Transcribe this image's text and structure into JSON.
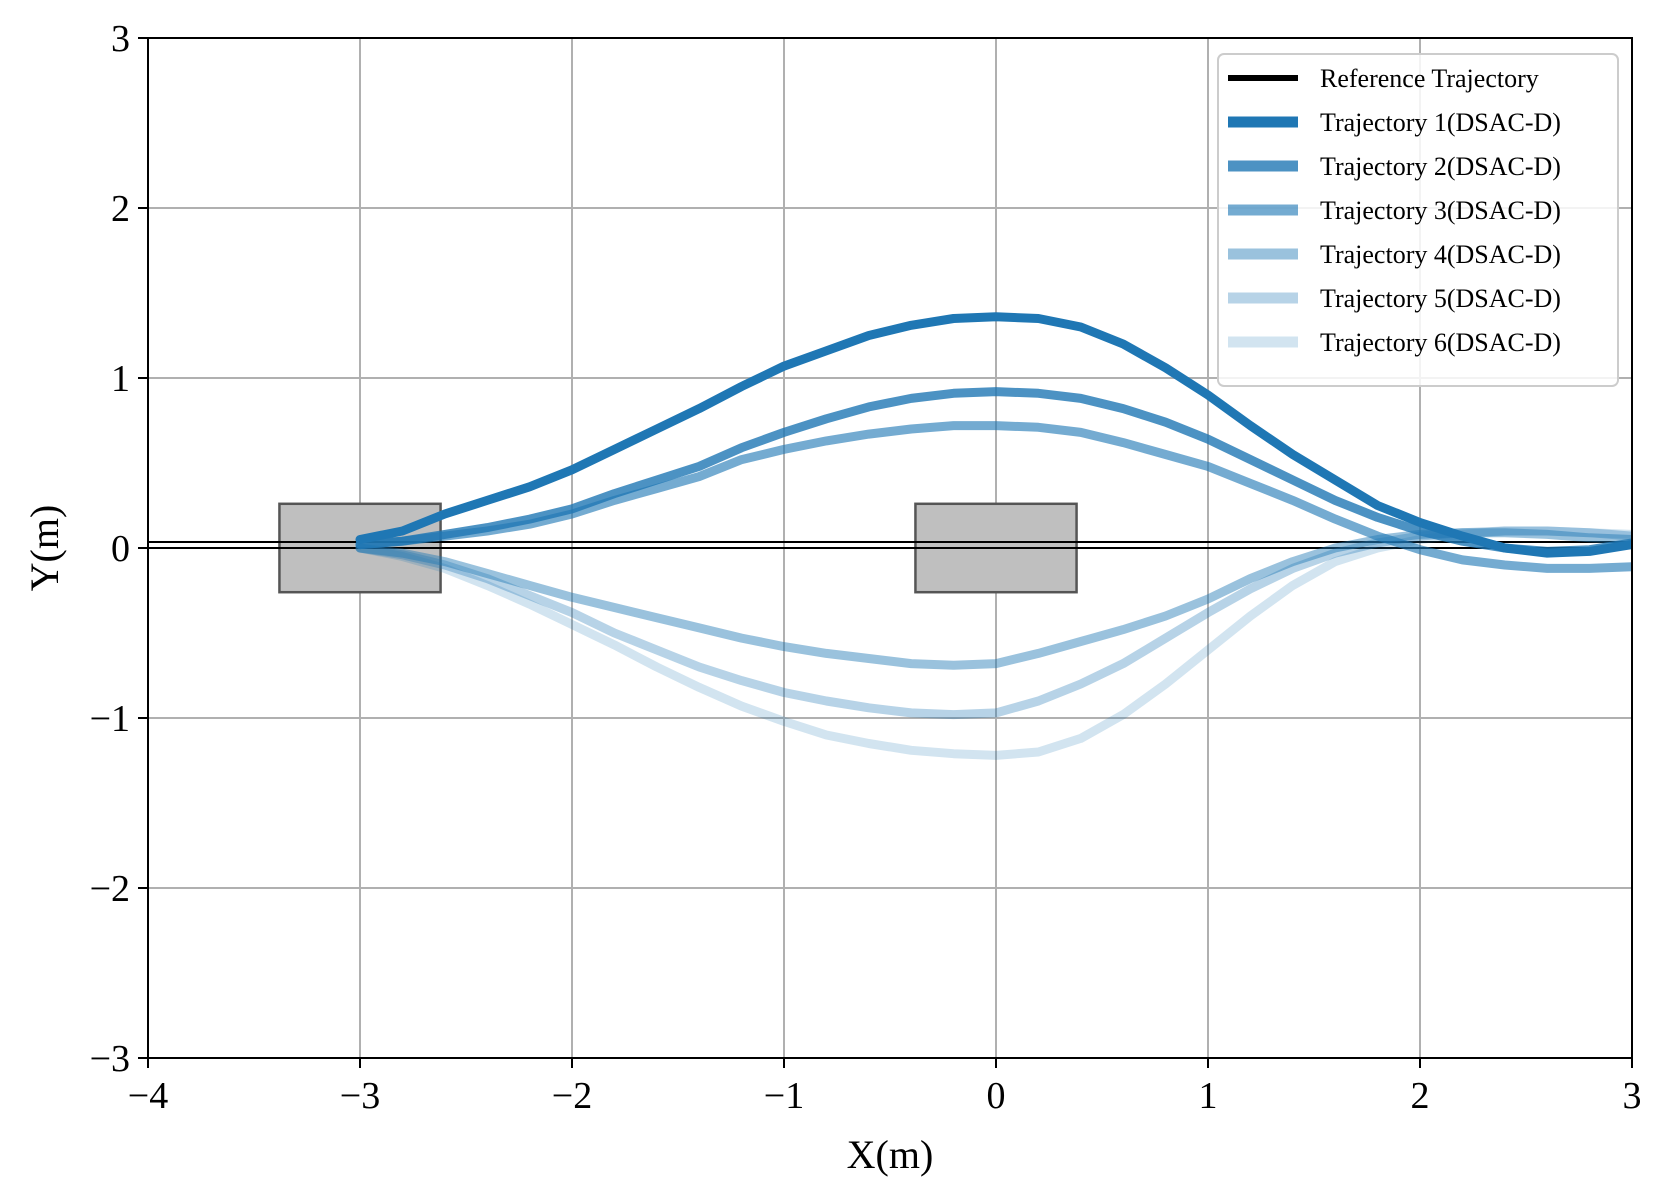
{
  "chart_data": {
    "type": "line",
    "title": "",
    "xlabel": "X(m)",
    "ylabel": "Y(m)",
    "xlim": [
      -4,
      3
    ],
    "ylim": [
      -3,
      3
    ],
    "xticks": [
      -4,
      -3,
      -2,
      -1,
      0,
      1,
      2,
      3
    ],
    "yticks": [
      -3,
      -2,
      -1,
      0,
      1,
      2,
      3
    ],
    "xtick_labels": [
      "−4",
      "−3",
      "−2",
      "−1",
      "0",
      "1",
      "2",
      "3"
    ],
    "ytick_labels": [
      "−3",
      "−2",
      "−1",
      "0",
      "1",
      "2",
      "3"
    ],
    "grid": true,
    "legend_position": "top-right",
    "obstacles": [
      {
        "x_min": -3.38,
        "x_max": -2.62,
        "y_min": -0.26,
        "y_max": 0.26,
        "fill": "#bfbfbf",
        "stroke": "#555555"
      },
      {
        "x_min": -0.38,
        "x_max": 0.38,
        "y_min": -0.26,
        "y_max": 0.26,
        "fill": "#bfbfbf",
        "stroke": "#555555"
      }
    ],
    "series": [
      {
        "name": "Reference Trajectory",
        "color": "#000000",
        "opacity": 1.0,
        "width": 3,
        "x": [
          -4,
          3
        ],
        "y": [
          0.0,
          0.0
        ]
      },
      {
        "name": "Trajectory 1(DSAC-D)",
        "color": "#1f77b4",
        "opacity": 1.0,
        "width": 9,
        "x": [
          -3.0,
          -2.8,
          -2.6,
          -2.4,
          -2.2,
          -2.0,
          -1.8,
          -1.6,
          -1.4,
          -1.2,
          -1.0,
          -0.8,
          -0.6,
          -0.4,
          -0.2,
          0.0,
          0.2,
          0.4,
          0.6,
          0.8,
          1.0,
          1.2,
          1.4,
          1.6,
          1.8,
          2.0,
          2.2,
          2.4,
          2.6,
          2.8,
          3.0
        ],
        "y": [
          0.05,
          0.1,
          0.2,
          0.28,
          0.36,
          0.46,
          0.58,
          0.7,
          0.82,
          0.95,
          1.07,
          1.16,
          1.25,
          1.31,
          1.35,
          1.36,
          1.35,
          1.3,
          1.2,
          1.06,
          0.9,
          0.72,
          0.55,
          0.4,
          0.25,
          0.15,
          0.07,
          0.0,
          -0.03,
          -0.02,
          0.02
        ]
      },
      {
        "name": "Trajectory 2(DSAC-D)",
        "color": "#1f77b4",
        "opacity": 0.8,
        "width": 9,
        "x": [
          -3.0,
          -2.8,
          -2.6,
          -2.4,
          -2.2,
          -2.0,
          -1.8,
          -1.6,
          -1.4,
          -1.2,
          -1.0,
          -0.8,
          -0.6,
          -0.4,
          -0.2,
          0.0,
          0.2,
          0.4,
          0.6,
          0.8,
          1.0,
          1.2,
          1.4,
          1.6,
          1.8,
          2.0,
          2.2,
          2.4,
          2.6,
          2.8,
          3.0
        ],
        "y": [
          0.02,
          0.04,
          0.08,
          0.12,
          0.17,
          0.23,
          0.32,
          0.4,
          0.48,
          0.59,
          0.68,
          0.76,
          0.83,
          0.88,
          0.91,
          0.92,
          0.91,
          0.88,
          0.82,
          0.74,
          0.64,
          0.52,
          0.4,
          0.28,
          0.18,
          0.1,
          0.04,
          0.0,
          -0.02,
          -0.01,
          0.03
        ]
      },
      {
        "name": "Trajectory 3(DSAC-D)",
        "color": "#1f77b4",
        "opacity": 0.62,
        "width": 9,
        "x": [
          -3.0,
          -2.8,
          -2.6,
          -2.4,
          -2.2,
          -2.0,
          -1.8,
          -1.6,
          -1.4,
          -1.2,
          -1.0,
          -0.8,
          -0.6,
          -0.4,
          -0.2,
          0.0,
          0.2,
          0.4,
          0.6,
          0.8,
          1.0,
          1.2,
          1.4,
          1.6,
          1.8,
          2.0,
          2.2,
          2.4,
          2.6,
          2.8,
          3.0
        ],
        "y": [
          0.02,
          0.04,
          0.07,
          0.1,
          0.14,
          0.2,
          0.28,
          0.35,
          0.42,
          0.52,
          0.58,
          0.63,
          0.67,
          0.7,
          0.72,
          0.72,
          0.71,
          0.68,
          0.62,
          0.55,
          0.48,
          0.38,
          0.28,
          0.17,
          0.07,
          -0.01,
          -0.07,
          -0.1,
          -0.12,
          -0.12,
          -0.11
        ]
      },
      {
        "name": "Trajectory 4(DSAC-D)",
        "color": "#1f77b4",
        "opacity": 0.45,
        "width": 9,
        "x": [
          -3.0,
          -2.8,
          -2.6,
          -2.4,
          -2.2,
          -2.0,
          -1.8,
          -1.6,
          -1.4,
          -1.2,
          -1.0,
          -0.8,
          -0.6,
          -0.4,
          -0.2,
          0.0,
          0.2,
          0.4,
          0.6,
          0.8,
          1.0,
          1.2,
          1.4,
          1.6,
          1.8,
          2.0,
          2.2,
          2.4,
          2.6,
          2.8,
          3.0
        ],
        "y": [
          0.0,
          -0.03,
          -0.08,
          -0.15,
          -0.22,
          -0.29,
          -0.35,
          -0.41,
          -0.47,
          -0.53,
          -0.58,
          -0.62,
          -0.65,
          -0.68,
          -0.69,
          -0.68,
          -0.62,
          -0.55,
          -0.48,
          -0.4,
          -0.3,
          -0.18,
          -0.08,
          0.0,
          0.05,
          0.08,
          0.09,
          0.09,
          0.08,
          0.06,
          0.05
        ]
      },
      {
        "name": "Trajectory 5(DSAC-D)",
        "color": "#1f77b4",
        "opacity": 0.32,
        "width": 9,
        "x": [
          -3.0,
          -2.8,
          -2.6,
          -2.4,
          -2.2,
          -2.0,
          -1.8,
          -1.6,
          -1.4,
          -1.2,
          -1.0,
          -0.8,
          -0.6,
          -0.4,
          -0.2,
          0.0,
          0.2,
          0.4,
          0.6,
          0.8,
          1.0,
          1.2,
          1.4,
          1.6,
          1.8,
          2.0,
          2.2,
          2.4,
          2.6,
          2.8,
          3.0
        ],
        "y": [
          0.0,
          -0.04,
          -0.1,
          -0.18,
          -0.28,
          -0.38,
          -0.5,
          -0.6,
          -0.7,
          -0.78,
          -0.85,
          -0.9,
          -0.94,
          -0.97,
          -0.98,
          -0.97,
          -0.9,
          -0.8,
          -0.68,
          -0.53,
          -0.38,
          -0.24,
          -0.12,
          -0.03,
          0.03,
          0.07,
          0.09,
          0.1,
          0.1,
          0.09,
          0.07
        ]
      },
      {
        "name": "Trajectory 6(DSAC-D)",
        "color": "#1f77b4",
        "opacity": 0.2,
        "width": 9,
        "x": [
          -3.0,
          -2.8,
          -2.6,
          -2.4,
          -2.2,
          -2.0,
          -1.8,
          -1.6,
          -1.4,
          -1.2,
          -1.0,
          -0.8,
          -0.6,
          -0.4,
          -0.2,
          0.0,
          0.2,
          0.4,
          0.6,
          0.8,
          1.0,
          1.2,
          1.4,
          1.6,
          1.8,
          2.0,
          2.2,
          2.4,
          2.6,
          2.8,
          3.0
        ],
        "y": [
          0.0,
          -0.05,
          -0.12,
          -0.22,
          -0.33,
          -0.45,
          -0.57,
          -0.7,
          -0.82,
          -0.93,
          -1.02,
          -1.1,
          -1.15,
          -1.19,
          -1.21,
          -1.22,
          -1.2,
          -1.12,
          -0.98,
          -0.8,
          -0.6,
          -0.4,
          -0.22,
          -0.08,
          0.0,
          0.05,
          0.08,
          0.1,
          0.1,
          0.09,
          0.08
        ]
      }
    ]
  }
}
